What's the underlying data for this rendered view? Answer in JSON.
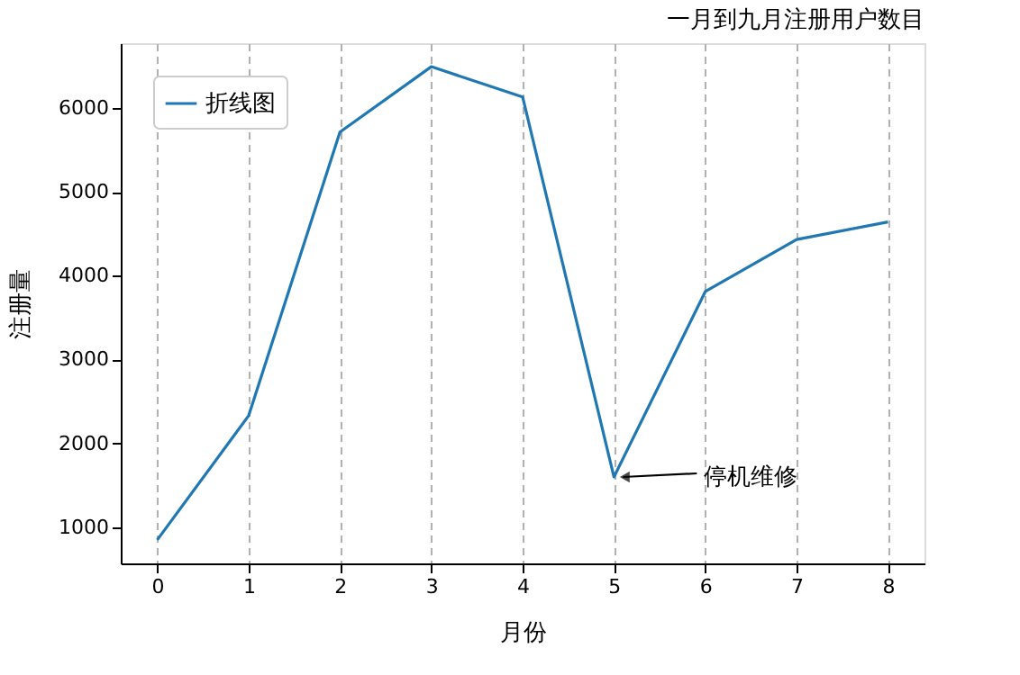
{
  "chart_data": {
    "type": "line",
    "title": "一月到九月注册用户数目",
    "xlabel": "月份",
    "ylabel": "注册量",
    "x": [
      0,
      1,
      2,
      3,
      4,
      5,
      6,
      7,
      8
    ],
    "series": [
      {
        "name": "折线图",
        "color": "#1f77b4",
        "values": [
          850,
          2330,
          5710,
          6490,
          6130,
          1600,
          3810,
          4430,
          4640
        ]
      }
    ],
    "xlim": [
      -0.4,
      8.4
    ],
    "xticks": [
      0,
      1,
      2,
      3,
      4,
      5,
      6,
      7,
      8
    ],
    "ylim": [
      570,
      6770
    ],
    "yticks": [
      1000,
      2000,
      3000,
      4000,
      5000,
      6000
    ],
    "grid": "x",
    "legend": "top left",
    "marker": "none",
    "line_style": "solid",
    "annotations": [
      {
        "text": "停机维修",
        "x": 5,
        "y": 1600
      }
    ]
  }
}
